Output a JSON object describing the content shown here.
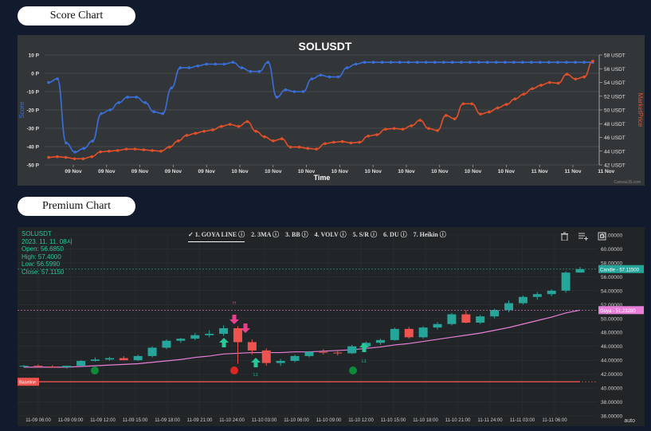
{
  "score_chart_button": "Score Chart",
  "premium_chart_button": "Premium Chart",
  "score_chart": {
    "title": "SOLUSDT",
    "xlabel": "Time",
    "ylabel_left": "Score",
    "ylabel_right": "MarketPrice",
    "credit": "CanvasJS.com",
    "left_ticks": [
      "10 P",
      "0 P",
      "-10 P",
      "-20 P",
      "-30 P",
      "-40 P",
      "-50 P"
    ],
    "right_ticks": [
      "58 USDT",
      "56 USDT",
      "54 USDT",
      "52 USDT",
      "50 USDT",
      "48 USDT",
      "46 USDT",
      "44 USDT",
      "42 USDT"
    ],
    "x_ticks": [
      "09 Nov",
      "09 Nov",
      "09 Nov",
      "09 Nov",
      "09 Nov",
      "10 Nov",
      "10 Nov",
      "10 Nov",
      "10 Nov",
      "10 Nov",
      "10 Nov",
      "10 Nov",
      "10 Nov",
      "10 Nov",
      "11 Nov",
      "11 Nov",
      "11 Nov"
    ],
    "score_color": "#3a6fd9",
    "price_color": "#e2502a"
  },
  "premium_chart": {
    "symbol": "SOLUSDT",
    "date": "2023. 11. 11. 08시",
    "open": "Open: 56.6850",
    "high": "High: 57.4000",
    "low": "Low: 56.5990",
    "close": "Close: 57.1150",
    "tabs": [
      "1. GOYA LINE ⓘ",
      "2. 3MA ⓘ",
      "3. BB ⓘ",
      "4. VOLV ⓘ",
      "5. S/R ⓘ",
      "6. DU ⓘ",
      "7. Heikin ⓘ"
    ],
    "active_tab_check": "✓",
    "y_ticks": [
      "62.00000",
      "60.00000",
      "58.00000",
      "56.00000",
      "54.00000",
      "52.00000",
      "50.00000",
      "48.00000",
      "46.00000",
      "44.00000",
      "42.00000",
      "40.00000",
      "38.00000",
      "36.00000"
    ],
    "x_ticks": [
      "11-09 06:00",
      "11-09 09:00",
      "11-09 12:00",
      "11-09 15:00",
      "11-09 18:00",
      "11-09 21:00",
      "11-10 24:00",
      "11-10 03:00",
      "11-10 06:00",
      "11-10 09:00",
      "11-10 12:00",
      "11-10 15:00",
      "11-10 18:00",
      "11-10 21:00",
      "11-11 24:00",
      "11-11 03:00",
      "11-11 06:00"
    ],
    "candle_label": "Candle",
    "candle_value": "57.11500",
    "goya_label": "Goya",
    "goya_value": "51.23280",
    "baseline_label": "Baseline",
    "marker_h1": "H",
    "marker_l1": "L1",
    "marker_l2": "L1",
    "auto_label": "auto",
    "candle_color_up": "#26a69a",
    "candle_color_down": "#ef5350",
    "goya_color": "#e77fd8"
  },
  "chart_data": [
    {
      "type": "line",
      "title": "SOLUSDT",
      "xlabel": "Time",
      "series": [
        {
          "name": "Score",
          "axis": "left",
          "values": [
            -5,
            -3,
            -38,
            -43,
            -41,
            -37,
            -22,
            -20,
            -16,
            -13,
            -13,
            -16,
            -21,
            -22,
            -8,
            3,
            3,
            4,
            5,
            5,
            5,
            6,
            3,
            1,
            1,
            6,
            -13,
            -9,
            -10,
            -10,
            -3,
            -1,
            -2,
            -2,
            3,
            5,
            6,
            6,
            6,
            6,
            6,
            6,
            6,
            6,
            6,
            6,
            6,
            6,
            6,
            6,
            6,
            6,
            6,
            6,
            6,
            6,
            6,
            6,
            6,
            6,
            6,
            6,
            6
          ]
        },
        {
          "name": "MarketPrice",
          "axis": "right",
          "values": [
            43.1,
            43.2,
            43.1,
            42.9,
            42.9,
            43.2,
            43.9,
            44.0,
            44.1,
            44.3,
            44.3,
            44.2,
            44.1,
            44.0,
            44.6,
            45.5,
            46.3,
            46.6,
            46.9,
            47.1,
            47.6,
            47.9,
            47.6,
            48.3,
            46.9,
            46.1,
            45.5,
            45.8,
            44.6,
            44.6,
            44.4,
            44.3,
            45.1,
            45.3,
            45.4,
            45.2,
            45.3,
            46.2,
            46.4,
            47.2,
            47.3,
            47.2,
            47.7,
            48.5,
            47.3,
            47.0,
            49.2,
            48.7,
            50.9,
            50.9,
            49.4,
            49.7,
            50.3,
            50.8,
            51.6,
            52.3,
            53.1,
            53.6,
            54.0,
            53.9,
            55.2,
            54.5,
            54.8,
            57.1
          ]
        }
      ],
      "ylim_left": [
        -50,
        10
      ],
      "ylim_right": [
        42,
        58
      ],
      "grid": true
    },
    {
      "type": "candlestick",
      "title": "SOLUSDT",
      "series": [
        {
          "name": "Candle",
          "ohlc": [
            [
              43.1,
              43.3,
              42.9,
              43.2
            ],
            [
              43.2,
              43.4,
              43.0,
              43.1
            ],
            [
              43.1,
              43.3,
              42.9,
              43.0
            ],
            [
              43.0,
              43.2,
              42.8,
              43.2
            ],
            [
              43.2,
              44.0,
              43.1,
              43.9
            ],
            [
              43.9,
              44.4,
              43.8,
              44.1
            ],
            [
              44.1,
              44.5,
              43.9,
              44.3
            ],
            [
              44.3,
              44.6,
              44.0,
              44.0
            ],
            [
              44.0,
              44.8,
              43.9,
              44.6
            ],
            [
              44.6,
              46.0,
              44.4,
              45.8
            ],
            [
              45.8,
              47.0,
              45.6,
              46.8
            ],
            [
              46.8,
              47.2,
              46.5,
              47.1
            ],
            [
              47.1,
              47.9,
              46.9,
              47.6
            ],
            [
              47.6,
              48.3,
              47.3,
              47.8
            ],
            [
              47.8,
              49.0,
              47.5,
              48.6
            ],
            [
              48.6,
              48.9,
              43.5,
              46.6
            ],
            [
              46.6,
              47.0,
              44.8,
              45.4
            ],
            [
              45.4,
              45.7,
              43.2,
              43.6
            ],
            [
              43.6,
              44.2,
              43.2,
              43.9
            ],
            [
              43.9,
              44.8,
              43.7,
              44.6
            ],
            [
              44.6,
              45.3,
              44.4,
              45.2
            ],
            [
              45.2,
              45.6,
              44.8,
              45.1
            ],
            [
              45.1,
              45.4,
              44.7,
              45.0
            ],
            [
              45.0,
              46.2,
              44.9,
              46.0
            ],
            [
              46.0,
              46.7,
              45.7,
              46.5
            ],
            [
              46.5,
              47.1,
              46.2,
              46.9
            ],
            [
              46.9,
              48.7,
              46.8,
              48.5
            ],
            [
              48.5,
              48.8,
              47.1,
              47.3
            ],
            [
              47.3,
              48.9,
              47.1,
              48.7
            ],
            [
              48.7,
              49.5,
              48.4,
              49.2
            ],
            [
              49.2,
              50.8,
              49.0,
              50.6
            ],
            [
              50.6,
              51.2,
              49.3,
              49.4
            ],
            [
              49.4,
              50.5,
              49.2,
              50.3
            ],
            [
              50.3,
              51.4,
              50.0,
              51.2
            ],
            [
              51.2,
              52.6,
              50.9,
              52.2
            ],
            [
              52.2,
              53.3,
              52.0,
              53.1
            ],
            [
              53.1,
              53.8,
              52.7,
              53.5
            ],
            [
              53.5,
              54.2,
              53.2,
              54.0
            ],
            [
              54.0,
              56.8,
              53.7,
              56.6
            ],
            [
              56.6,
              57.4,
              56.6,
              57.1
            ]
          ]
        },
        {
          "name": "Goya",
          "values": [
            43.0,
            43.0,
            43.0,
            43.0,
            43.1,
            43.2,
            43.3,
            43.4,
            43.5,
            43.7,
            43.9,
            44.1,
            44.4,
            44.6,
            44.9,
            45.0,
            45.1,
            45.1,
            45.1,
            45.2,
            45.2,
            45.3,
            45.4,
            45.5,
            45.7,
            45.9,
            46.2,
            46.4,
            46.7,
            47.0,
            47.3,
            47.6,
            47.9,
            48.3,
            48.7,
            49.2,
            49.7,
            50.2,
            50.8,
            51.2
          ]
        }
      ],
      "baseline": 40.9,
      "ylim": [
        36,
        62
      ],
      "grid": true
    }
  ]
}
